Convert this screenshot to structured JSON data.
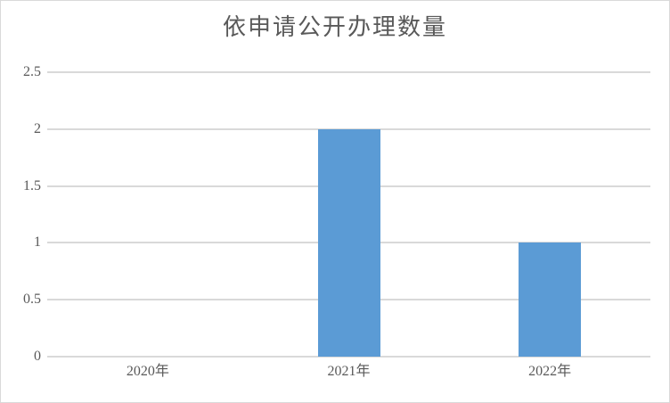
{
  "window": {
    "background_color": "#ffffff",
    "border_color": "#d9d9d9"
  },
  "chart_data": {
    "type": "bar",
    "title": "依申请公开办理数量",
    "categories": [
      "2020年",
      "2021年",
      "2022年"
    ],
    "values": [
      0,
      2,
      1
    ],
    "y_ticks": [
      "0",
      "0.5",
      "1",
      "1.5",
      "2",
      "2.5"
    ],
    "ylim": [
      0,
      2.5
    ],
    "xlabel": "",
    "ylabel": "",
    "grid": true,
    "legend_position": "none",
    "bar_color": "#5b9bd5",
    "gridline_color": "#d9d9d9",
    "text_color": "#595959"
  }
}
